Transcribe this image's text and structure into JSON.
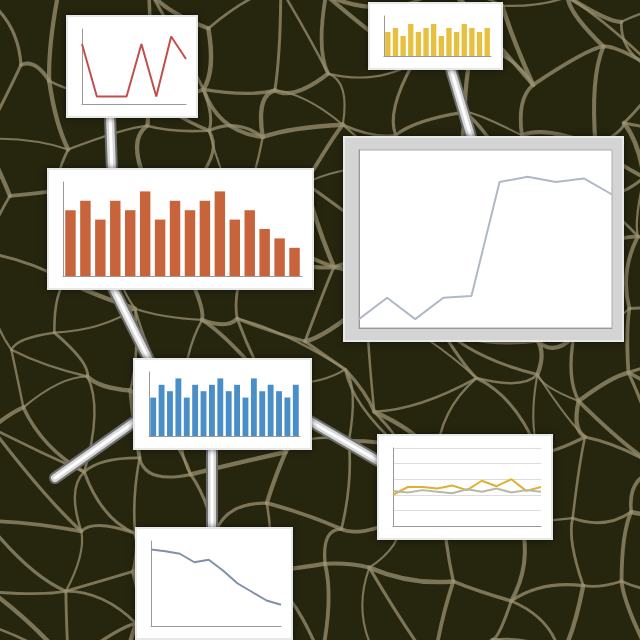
{
  "chart_data": [
    {
      "type": "line",
      "categories": [
        null,
        null,
        null,
        null,
        null,
        null,
        null,
        null
      ],
      "values": [
        8,
        1,
        1,
        1,
        8,
        1,
        9,
        6
      ],
      "color": "#c0504d",
      "ylim": [
        0,
        10
      ],
      "yticks": [
        0,
        2,
        4,
        6,
        8,
        10
      ],
      "grid": false,
      "tick_labels": false
    },
    {
      "type": "bar",
      "categories": [
        null,
        null,
        null,
        null,
        null,
        null,
        null,
        null,
        null,
        null,
        null,
        null,
        null,
        null
      ],
      "values": [
        6,
        7,
        5,
        8,
        6,
        7,
        8,
        5,
        7,
        6,
        8,
        7,
        6,
        7
      ],
      "color": "#e8c040",
      "ylim": [
        0,
        10
      ],
      "yticks": [
        0,
        5,
        10
      ],
      "grid": false,
      "tick_labels": false
    },
    {
      "type": "bar",
      "categories": [
        null,
        null,
        null,
        null,
        null,
        null,
        null,
        null,
        null,
        null,
        null,
        null,
        null,
        null,
        null,
        null
      ],
      "values": [
        7,
        8,
        6,
        8,
        7,
        9,
        6,
        8,
        7,
        8,
        9,
        6,
        7,
        5,
        4,
        3
      ],
      "color": "#c8643c",
      "ylim": [
        0,
        10
      ],
      "yticks": [
        0,
        5,
        10
      ],
      "grid": false,
      "tick_labels": false
    },
    {
      "type": "line",
      "categories": [
        null,
        null,
        null,
        null,
        null,
        null,
        null,
        null,
        null,
        null
      ],
      "values": [
        0.5,
        1.7,
        0.5,
        1.7,
        1.8,
        8.2,
        8.5,
        8.2,
        8.4,
        7.5
      ],
      "color": "#b0b8c8",
      "ylim": [
        0,
        10
      ],
      "yticks": [
        0,
        2,
        4,
        6,
        8,
        10
      ],
      "grid": false,
      "tick_labels": false
    },
    {
      "type": "bar",
      "categories": [
        null,
        null,
        null,
        null,
        null,
        null,
        null,
        null,
        null,
        null,
        null,
        null,
        null,
        null,
        null,
        null,
        null,
        null
      ],
      "values": [
        6,
        8,
        7,
        9,
        6,
        8,
        7,
        8,
        9,
        7,
        8,
        6,
        9,
        7,
        8,
        7,
        6,
        8
      ],
      "color": "#4a8ec8",
      "ylim": [
        0,
        10
      ],
      "yticks": [
        0,
        5,
        10
      ],
      "grid": false,
      "tick_labels": false
    },
    {
      "type": "line",
      "categories": [
        null,
        null,
        null,
        null,
        null,
        null,
        null,
        null,
        null,
        null,
        null
      ],
      "series": [
        {
          "values": [
            4,
            5,
            5,
            4.8,
            5.2,
            4.6,
            5.8,
            5.1,
            6,
            4.5,
            5
          ],
          "color": "#e0b030"
        },
        {
          "values": [
            4.5,
            4.3,
            4.6,
            4.4,
            4.2,
            4.7,
            4.4,
            4.8,
            4.3,
            4.6,
            4.4
          ],
          "color": "#b8b8a8"
        }
      ],
      "ylim": [
        0,
        10
      ],
      "yticks": [
        0,
        2,
        4,
        6,
        8,
        10
      ],
      "grid": true,
      "tick_labels": false
    },
    {
      "type": "line",
      "categories": [
        null,
        null,
        null,
        null,
        null,
        null,
        null,
        null,
        null,
        null
      ],
      "values": [
        9,
        8.8,
        8.5,
        7.5,
        7.8,
        6.5,
        5,
        4,
        3,
        2.5
      ],
      "color": "#8090a8",
      "ylim": [
        0,
        10
      ],
      "yticks": [
        0,
        2,
        4,
        6,
        8,
        10
      ],
      "grid": false,
      "tick_labels": false
    }
  ]
}
